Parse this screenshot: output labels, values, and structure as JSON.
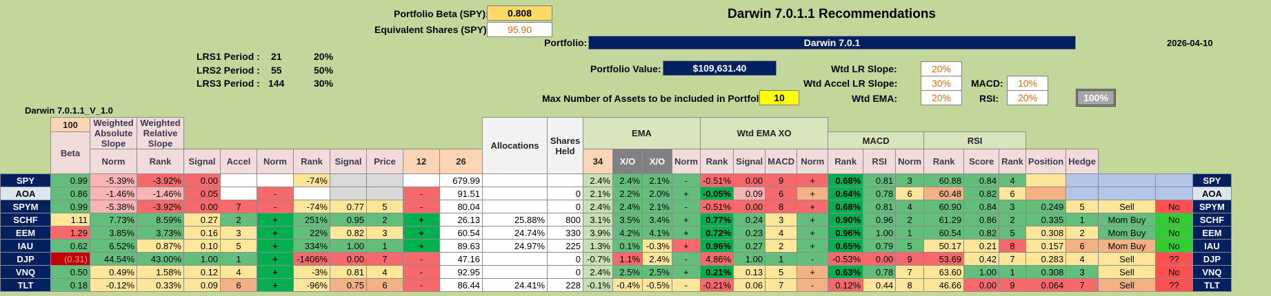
{
  "header": {
    "beta_label": "Portfolio Beta (SPY):",
    "beta_value": "0.808",
    "eq_label": "Equivalent Shares (SPY):",
    "eq_value": "95.90",
    "title": "Darwin 7.0.1.1 Recommendations",
    "portfolio_label": "Portfolio:",
    "portfolio_name": "Darwin 7.0.1",
    "date": "2026-04-10",
    "version": "Darwin 7.0.1.1_V_1.0",
    "pv_label": "Portfolio Value:",
    "pv_value": "$109,631.40",
    "max_label": "Max Number of Assets to be included in Portfolio:",
    "max_value": "10",
    "wtd_lr_label": "Wtd LR Slope:",
    "wtd_lr_value": "20%",
    "wtd_accel_label": "Wtd Accel LR Slope:",
    "wtd_accel_value": "30%",
    "wtd_ema_label": "Wtd EMA:",
    "wtd_ema_value": "20%",
    "macd_label": "MACD:",
    "macd_value": "10%",
    "rsi_label": "RSI:",
    "rsi_value": "20%",
    "total_button": "100%"
  },
  "lrs": [
    {
      "label": "LRS1 Period :",
      "period": "21",
      "pct": "20%"
    },
    {
      "label": "LRS2 Period :",
      "period": "55",
      "pct": "50%"
    },
    {
      "label": "LRS3 Period :",
      "period": "144",
      "pct": "30%"
    }
  ],
  "table": {
    "top_100": "100",
    "group_allocations": "Allocations",
    "group_shares": "Shares Held",
    "group_ema": "EMA",
    "group_wtd_ema_xo": "Wtd EMA XO",
    "group_macd": "MACD",
    "group_rsi": "RSI",
    "columns": [
      "Beta",
      "Weighted Absolute Slope",
      "Weighted Relative Slope",
      "Norm",
      "Rank",
      "Signal",
      "Accel",
      "Norm",
      "Rank",
      "Signal",
      "Price",
      "12",
      "26",
      "34",
      "X/O",
      "X/O",
      "Norm",
      "Rank",
      "Signal",
      "MACD",
      "Norm",
      "Rank",
      "RSI",
      "Norm",
      "Rank",
      "Score",
      "Rank",
      "Position",
      "Hedge"
    ],
    "rows": [
      {
        "t": "SPY",
        "beta": "0.99",
        "was": "-5.39%",
        "wrs": "-3.92%",
        "n1": "0.00",
        "r1": "",
        "s1": "",
        "acc": "-74%",
        "n2": "",
        "r2": "",
        "s2": "",
        "price": "679.99",
        "alloc": "",
        "sh": "",
        "e12": "2.4%",
        "e26": "2.4%",
        "e34": "2.1%",
        "xo": "-",
        "wxo": "-0.51%",
        "n3": "0.00",
        "r3": "9",
        "s3": "+",
        "macd": "0.68%",
        "n4": "0.81",
        "r4": "3",
        "rsi": "60.88",
        "n5": "0.84",
        "r5": "4",
        "score": "",
        "r6": "",
        "pos": "",
        "hedge": ""
      },
      {
        "t": "AOA",
        "beta": "0.86",
        "was": "-1.46%",
        "wrs": "-1.46%",
        "n1": "0.05",
        "r1": "",
        "s1": "-",
        "acc": "",
        "n2": "",
        "r2": "",
        "s2": "-",
        "price": "91.51",
        "alloc": "",
        "sh": "0",
        "e12": "2.1%",
        "e26": "2.2%",
        "e34": "2.0%",
        "xo": "+",
        "wxo": "-0.05%",
        "n3": "0.09",
        "r3": "6",
        "s3": "+",
        "macd": "0.64%",
        "n4": "0.78",
        "r4": "6",
        "rsi": "60.48",
        "n5": "0.82",
        "r5": "6",
        "score": "",
        "r6": "",
        "pos": "",
        "hedge": ""
      },
      {
        "t": "SPYM",
        "beta": "0.99",
        "was": "-5.38%",
        "wrs": "-3.92%",
        "n1": "0.00",
        "r1": "7",
        "s1": "-",
        "acc": "-74%",
        "n2": "0.77",
        "r2": "5",
        "s2": "-",
        "price": "80.04",
        "alloc": "",
        "sh": "0",
        "e12": "2.4%",
        "e26": "2.4%",
        "e34": "2.1%",
        "xo": "-",
        "wxo": "-0.51%",
        "n3": "0.00",
        "r3": "8",
        "s3": "+",
        "macd": "0.68%",
        "n4": "0.81",
        "r4": "4",
        "rsi": "60.90",
        "n5": "0.84",
        "r5": "3",
        "score": "0.249",
        "r6": "5",
        "pos": "Sell",
        "hedge": "No"
      },
      {
        "t": "SCHF",
        "beta": "1.11",
        "was": "7.73%",
        "wrs": "8.59%",
        "n1": "0.27",
        "r1": "2",
        "s1": "+",
        "acc": "251%",
        "n2": "0.95",
        "r2": "2",
        "s2": "+",
        "price": "26.13",
        "alloc": "25.88%",
        "sh": "800",
        "e12": "3.1%",
        "e26": "3.5%",
        "e34": "3.4%",
        "xo": "+",
        "wxo": "0.77%",
        "n3": "0.24",
        "r3": "3",
        "s3": "+",
        "macd": "0.90%",
        "n4": "0.96",
        "r4": "2",
        "rsi": "61.29",
        "n5": "0.86",
        "r5": "2",
        "score": "0.335",
        "r6": "1",
        "pos": "Mom Buy",
        "hedge": "No"
      },
      {
        "t": "EEM",
        "beta": "1.29",
        "was": "3.85%",
        "wrs": "3.73%",
        "n1": "0.16",
        "r1": "3",
        "s1": "+",
        "acc": "22%",
        "n2": "0.82",
        "r2": "3",
        "s2": "+",
        "price": "60.54",
        "alloc": "24.74%",
        "sh": "330",
        "e12": "3.9%",
        "e26": "4.2%",
        "e34": "4.1%",
        "xo": "+",
        "wxo": "0.72%",
        "n3": "0.23",
        "r3": "4",
        "s3": "+",
        "macd": "0.96%",
        "n4": "1.00",
        "r4": "1",
        "rsi": "60.54",
        "n5": "0.82",
        "r5": "5",
        "score": "0.308",
        "r6": "2",
        "pos": "Mom Buy",
        "hedge": "No"
      },
      {
        "t": "IAU",
        "beta": "0.62",
        "was": "6.52%",
        "wrs": "0.87%",
        "n1": "0.10",
        "r1": "5",
        "s1": "+",
        "acc": "334%",
        "n2": "1.00",
        "r2": "1",
        "s2": "+",
        "price": "89.63",
        "alloc": "24.97%",
        "sh": "225",
        "e12": "1.3%",
        "e26": "0.1%",
        "e34": "-0.3%",
        "xo": "+",
        "wxo": "0.96%",
        "n3": "0.27",
        "r3": "2",
        "s3": "+",
        "macd": "0.65%",
        "n4": "0.79",
        "r4": "5",
        "rsi": "50.17",
        "n5": "0.21",
        "r5": "8",
        "score": "0.157",
        "r6": "6",
        "pos": "Mom Buy",
        "hedge": "No"
      },
      {
        "t": "DJP",
        "beta": "(0.31)",
        "was": "44.54%",
        "wrs": "43.00%",
        "n1": "1.00",
        "r1": "1",
        "s1": "+",
        "acc": "-1406%",
        "n2": "0.00",
        "r2": "7",
        "s2": "-",
        "price": "47.16",
        "alloc": "",
        "sh": "0",
        "e12": "-0.7%",
        "e26": "1.1%",
        "e34": "2.4%",
        "xo": "-",
        "wxo": "4.86%",
        "n3": "1.00",
        "r3": "1",
        "s3": "-",
        "macd": "-0.53%",
        "n4": "0.00",
        "r4": "9",
        "rsi": "53.69",
        "n5": "0.42",
        "r5": "7",
        "score": "0.283",
        "r6": "4",
        "pos": "Sell",
        "hedge": "??"
      },
      {
        "t": "VNQ",
        "beta": "0.50",
        "was": "0.49%",
        "wrs": "1.58%",
        "n1": "0.12",
        "r1": "4",
        "s1": "+",
        "acc": "-3%",
        "n2": "0.81",
        "r2": "4",
        "s2": "-",
        "price": "92.95",
        "alloc": "",
        "sh": "0",
        "e12": "2.4%",
        "e26": "2.5%",
        "e34": "2.5%",
        "xo": "+",
        "wxo": "0.21%",
        "n3": "0.13",
        "r3": "5",
        "s3": "+",
        "macd": "0.63%",
        "n4": "0.78",
        "r4": "7",
        "rsi": "63.60",
        "n5": "1.00",
        "r5": "1",
        "score": "0.308",
        "r6": "3",
        "pos": "Sell",
        "hedge": "No"
      },
      {
        "t": "TLT",
        "beta": "0.18",
        "was": "-0.12%",
        "wrs": "0.33%",
        "n1": "0.09",
        "r1": "6",
        "s1": "+",
        "acc": "-96%",
        "n2": "0.75",
        "r2": "6",
        "s2": "-",
        "price": "86.44",
        "alloc": "24.41%",
        "sh": "228",
        "e12": "-0.1%",
        "e26": "-0.4%",
        "e34": "-0.5%",
        "xo": "-",
        "wxo": "-0.21%",
        "n3": "0.06",
        "r3": "7",
        "s3": "-",
        "macd": "0.12%",
        "n4": "0.44",
        "r4": "8",
        "rsi": "46.66",
        "n5": "0.00",
        "r5": "9",
        "score": "0.064",
        "r6": "7",
        "pos": "Sell",
        "hedge": "??"
      }
    ]
  }
}
